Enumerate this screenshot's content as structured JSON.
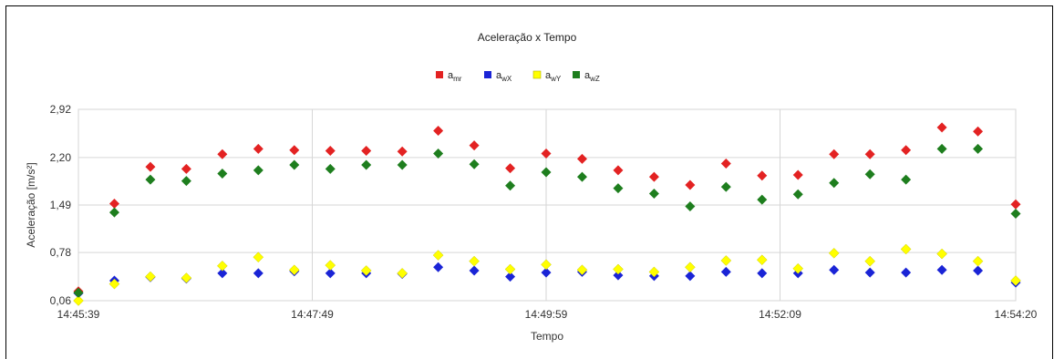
{
  "chart_data": {
    "type": "scatter",
    "title": "Aceleração x Tempo",
    "xlabel": "Tempo",
    "ylabel": "Aceleração [m/s²]",
    "x_ticks": [
      "14:45:39",
      "14:47:49",
      "14:49:59",
      "14:52:09",
      "14:54:20"
    ],
    "y_ticks": [
      "0,06",
      "0,78",
      "1,49",
      "2,20",
      "2,92"
    ],
    "ylim": [
      0.06,
      2.92
    ],
    "grid": true,
    "legend_position": "top",
    "x_time_start": "14:45:39",
    "x_time_end": "14:54:20",
    "x_times": [
      "14:45:39",
      "14:45:59",
      "14:46:19",
      "14:46:39",
      "14:46:59",
      "14:47:19",
      "14:47:39",
      "14:47:59",
      "14:48:19",
      "14:48:39",
      "14:48:59",
      "14:49:19",
      "14:49:39",
      "14:49:59",
      "14:50:19",
      "14:50:39",
      "14:50:59",
      "14:51:19",
      "14:51:39",
      "14:51:59",
      "14:52:19",
      "14:52:39",
      "14:52:59",
      "14:53:19",
      "14:53:39",
      "14:53:59",
      "14:54:20"
    ],
    "series": [
      {
        "name": "a",
        "subscript": "mr",
        "color": "#e32222",
        "values": [
          0.2,
          1.51,
          2.06,
          2.03,
          2.25,
          2.33,
          2.31,
          2.3,
          2.3,
          2.29,
          2.6,
          2.38,
          2.04,
          2.26,
          2.18,
          2.01,
          1.91,
          1.79,
          2.11,
          1.93,
          1.94,
          2.25,
          2.25,
          2.31,
          2.65,
          2.59,
          1.5
        ]
      },
      {
        "name": "a",
        "subscript": "wX",
        "color": "#1a24d6",
        "values": [
          0.17,
          0.36,
          0.41,
          0.39,
          0.47,
          0.47,
          0.5,
          0.47,
          0.47,
          0.46,
          0.56,
          0.51,
          0.42,
          0.48,
          0.49,
          0.44,
          0.43,
          0.43,
          0.49,
          0.47,
          0.47,
          0.52,
          0.48,
          0.48,
          0.52,
          0.51,
          0.33
        ]
      },
      {
        "name": "a",
        "subscript": "wY",
        "color": "#ffff00",
        "values": [
          0.06,
          0.31,
          0.42,
          0.4,
          0.58,
          0.71,
          0.52,
          0.59,
          0.51,
          0.47,
          0.74,
          0.65,
          0.53,
          0.6,
          0.52,
          0.53,
          0.49,
          0.56,
          0.66,
          0.67,
          0.54,
          0.77,
          0.65,
          0.83,
          0.76,
          0.65,
          0.36
        ]
      },
      {
        "name": "a",
        "subscript": "wZ",
        "color": "#1e7e1e",
        "values": [
          0.18,
          1.38,
          1.87,
          1.85,
          1.96,
          2.01,
          2.09,
          2.03,
          2.09,
          2.09,
          2.26,
          2.1,
          1.78,
          1.98,
          1.91,
          1.74,
          1.66,
          1.47,
          1.76,
          1.57,
          1.65,
          1.82,
          1.95,
          1.87,
          2.33,
          2.33,
          1.36
        ]
      }
    ]
  }
}
